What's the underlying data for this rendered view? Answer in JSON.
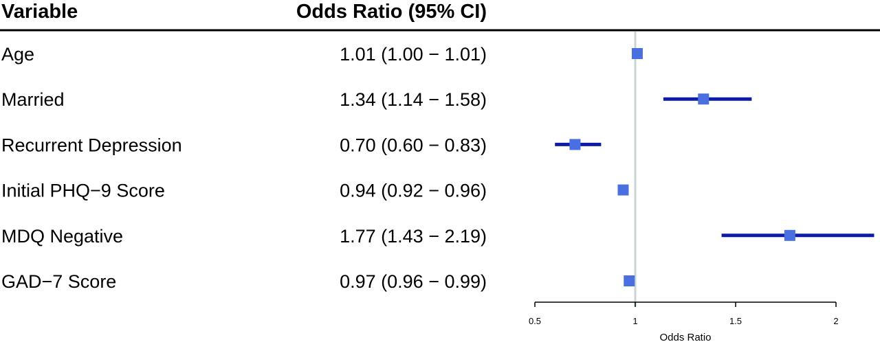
{
  "chart_data": {
    "type": "forest",
    "headers": {
      "variable": "Variable",
      "odds_ratio": "Odds Ratio (95% CI)"
    },
    "xlabel": "Odds Ratio",
    "xlim": [
      0.5,
      2.2
    ],
    "xticks": [
      0.5,
      1,
      1.5,
      2
    ],
    "xtick_labels": [
      "0.5",
      "1",
      "1.5",
      "2"
    ],
    "reference_line": 1,
    "point_color": "#4a6fe0",
    "ci_color": "#0e1aa8",
    "reference_color": "#c8d4d4",
    "rows": [
      {
        "variable": "Age",
        "or_text": "1.01 (1.00 − 1.01)",
        "or": 1.01,
        "lower": 1.0,
        "upper": 1.01
      },
      {
        "variable": "Married",
        "or_text": "1.34 (1.14 − 1.58)",
        "or": 1.34,
        "lower": 1.14,
        "upper": 1.58
      },
      {
        "variable": "Recurrent Depression",
        "or_text": "0.70 (0.60 − 0.83)",
        "or": 0.7,
        "lower": 0.6,
        "upper": 0.83
      },
      {
        "variable": "Initial PHQ−9 Score",
        "or_text": "0.94 (0.92 − 0.96)",
        "or": 0.94,
        "lower": 0.92,
        "upper": 0.96
      },
      {
        "variable": "MDQ Negative",
        "or_text": "1.77 (1.43 − 2.19)",
        "or": 1.77,
        "lower": 1.43,
        "upper": 2.19
      },
      {
        "variable": "GAD−7 Score",
        "or_text": "0.97 (0.96 − 0.99)",
        "or": 0.97,
        "lower": 0.96,
        "upper": 0.99
      }
    ]
  }
}
